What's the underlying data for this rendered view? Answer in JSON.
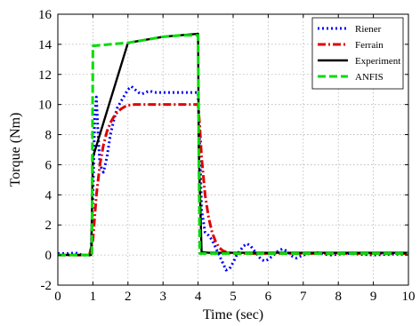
{
  "chart_data": {
    "type": "line",
    "title": "",
    "xlabel": "Time (sec)",
    "ylabel": "Torque (Nm)",
    "xlim": [
      0,
      10
    ],
    "ylim": [
      -2,
      16
    ],
    "xticks": [
      "0",
      "1",
      "2",
      "3",
      "4",
      "5",
      "6",
      "7",
      "8",
      "9",
      "10"
    ],
    "yticks": [
      "-2",
      "0",
      "2",
      "4",
      "6",
      "8",
      "10",
      "12",
      "14",
      "16"
    ],
    "grid": true,
    "legend_position": "top-right",
    "series": [
      {
        "name": "Riener",
        "color": "#0000ff",
        "style": "dotted",
        "x": [
          0,
          0.3,
          0.5,
          0.7,
          0.95,
          1.0,
          1.05,
          1.1,
          1.15,
          1.2,
          1.3,
          1.4,
          1.5,
          1.6,
          1.7,
          1.8,
          1.9,
          2.0,
          2.1,
          2.2,
          2.3,
          2.4,
          2.5,
          2.6,
          2.8,
          3.0,
          3.2,
          3.5,
          3.8,
          4.0,
          4.05,
          4.1,
          4.2,
          4.3,
          4.4,
          4.5,
          4.6,
          4.7,
          4.8,
          4.9,
          5.0,
          5.1,
          5.2,
          5.3,
          5.4,
          5.5,
          5.6,
          5.7,
          5.8,
          5.9,
          6.0,
          6.1,
          6.2,
          6.3,
          6.4,
          6.5,
          6.6,
          6.7,
          6.8,
          6.9,
          7.0,
          7.2,
          7.4,
          7.6,
          7.8,
          8.0,
          8.3,
          8.6,
          9.0,
          9.5,
          10.0
        ],
        "y": [
          0.1,
          0.1,
          0.15,
          0.0,
          0.0,
          4.0,
          9.0,
          10.5,
          8.0,
          6.0,
          5.5,
          6.5,
          8.0,
          9.0,
          9.8,
          10.2,
          10.6,
          11.0,
          11.2,
          11.0,
          10.8,
          10.7,
          10.8,
          10.9,
          10.8,
          10.8,
          10.8,
          10.8,
          10.8,
          10.8,
          7.0,
          3.0,
          1.5,
          1.3,
          1.0,
          0.5,
          0.0,
          -0.5,
          -1.0,
          -0.9,
          -0.5,
          0.0,
          0.3,
          0.6,
          0.75,
          0.6,
          0.3,
          0.0,
          -0.3,
          -0.4,
          -0.3,
          -0.1,
          0.1,
          0.3,
          0.4,
          0.3,
          0.1,
          -0.1,
          -0.2,
          -0.1,
          0.0,
          0.1,
          0.15,
          0.05,
          0.0,
          0.05,
          0.1,
          0.05,
          0.0,
          0.05,
          0.05
        ]
      },
      {
        "name": "Ferrain",
        "color": "#e00000",
        "style": "dashdot",
        "x": [
          0,
          0.9,
          1.0,
          1.1,
          1.2,
          1.3,
          1.4,
          1.5,
          1.6,
          1.7,
          1.8,
          1.9,
          2.0,
          2.2,
          2.5,
          3.0,
          3.5,
          4.0,
          4.05,
          4.1,
          4.2,
          4.3,
          4.4,
          4.5,
          4.6,
          4.7,
          4.8,
          5.0,
          5.5,
          6.0,
          7.0,
          8.0,
          9.0,
          10.0
        ],
        "y": [
          0,
          0,
          1.0,
          4.0,
          6.0,
          7.3,
          8.2,
          8.8,
          9.2,
          9.5,
          9.7,
          9.85,
          9.95,
          10.0,
          10.0,
          10.0,
          10.0,
          10.0,
          8.5,
          6.5,
          4.0,
          2.5,
          1.5,
          0.9,
          0.5,
          0.3,
          0.2,
          0.1,
          0.1,
          0.1,
          0.1,
          0.1,
          0.1,
          0.1
        ]
      },
      {
        "name": "Experiment",
        "color": "#000000",
        "style": "solid",
        "x": [
          0,
          0.95,
          1.0,
          2.0,
          2.5,
          3.0,
          3.5,
          4.0,
          4.02,
          4.1,
          4.3,
          5.0,
          6.0,
          7.0,
          8.0,
          9.0,
          10.0
        ],
        "y": [
          0,
          0,
          6.5,
          14.1,
          14.3,
          14.5,
          14.6,
          14.7,
          7.0,
          0.2,
          0.15,
          0.15,
          0.15,
          0.15,
          0.15,
          0.15,
          0.15
        ]
      },
      {
        "name": "ANFIS",
        "color": "#00dd00",
        "style": "dashed",
        "x": [
          0,
          0.97,
          1.0,
          2.0,
          2.5,
          3.0,
          3.5,
          4.0,
          4.02,
          4.05,
          5.0,
          6.0,
          7.0,
          8.0,
          9.0,
          10.0
        ],
        "y": [
          0,
          0,
          13.9,
          14.1,
          14.3,
          14.5,
          14.6,
          14.6,
          7.0,
          0.1,
          0.1,
          0.1,
          0.1,
          0.1,
          0.1,
          0.1
        ]
      }
    ]
  }
}
